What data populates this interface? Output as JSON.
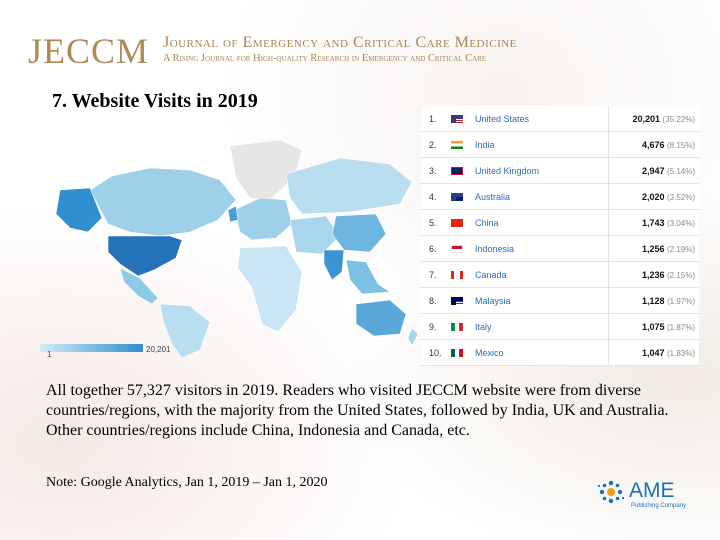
{
  "header": {
    "logo": "JECCM",
    "journal_title": "Journal of Emergency and Critical Care Medicine",
    "journal_subtitle": "A Rising Journal for High-quality Research in Emergency and Critical Care"
  },
  "slide_title": "7. Website Visits in 2019",
  "map": {
    "legend_min": "1",
    "legend_max": "20,201",
    "colors": {
      "low": "#cde8f4",
      "mid": "#8fc9e8",
      "high": "#2f8fcf",
      "none": "#e6e6e6",
      "top": "#2572b8"
    }
  },
  "table": {
    "rows": [
      {
        "rank": "1.",
        "flag": "us-flag-icon",
        "country": "United States",
        "visits": "20,201",
        "percent": "(35.22%)"
      },
      {
        "rank": "2.",
        "flag": "in-flag-icon",
        "country": "India",
        "visits": "4,676",
        "percent": "(8.15%)"
      },
      {
        "rank": "3.",
        "flag": "gb-flag-icon",
        "country": "United Kingdom",
        "visits": "2,947",
        "percent": "(5.14%)"
      },
      {
        "rank": "4.",
        "flag": "au-flag-icon",
        "country": "Australia",
        "visits": "2,020",
        "percent": "(3.52%)"
      },
      {
        "rank": "5.",
        "flag": "cn-flag-icon",
        "country": "China",
        "visits": "1,743",
        "percent": "(3.04%)"
      },
      {
        "rank": "6.",
        "flag": "id-flag-icon",
        "country": "Indonesia",
        "visits": "1,256",
        "percent": "(2.19%)"
      },
      {
        "rank": "7.",
        "flag": "ca-flag-icon",
        "country": "Canada",
        "visits": "1,236",
        "percent": "(2.15%)"
      },
      {
        "rank": "8.",
        "flag": "my-flag-icon",
        "country": "Malaysia",
        "visits": "1,128",
        "percent": "(1.97%)"
      },
      {
        "rank": "9.",
        "flag": "it-flag-icon",
        "country": "Italy",
        "visits": "1,075",
        "percent": "(1.87%)"
      },
      {
        "rank": "10.",
        "flag": "mx-flag-icon",
        "country": "Mexico",
        "visits": "1,047",
        "percent": "(1.83%)"
      }
    ]
  },
  "summary": "All together 57,327 visitors in 2019. Readers who visited JECCM website were from diverse countries/regions, with the majority from the United States, followed by India, UK and Australia. Other countries/regions include China, Indonesia and Canada, etc.",
  "note": "Note: Google Analytics, Jan 1, 2019 – Jan 1, 2020",
  "publisher": {
    "name": "AME",
    "tagline": "Publishing Company"
  }
}
